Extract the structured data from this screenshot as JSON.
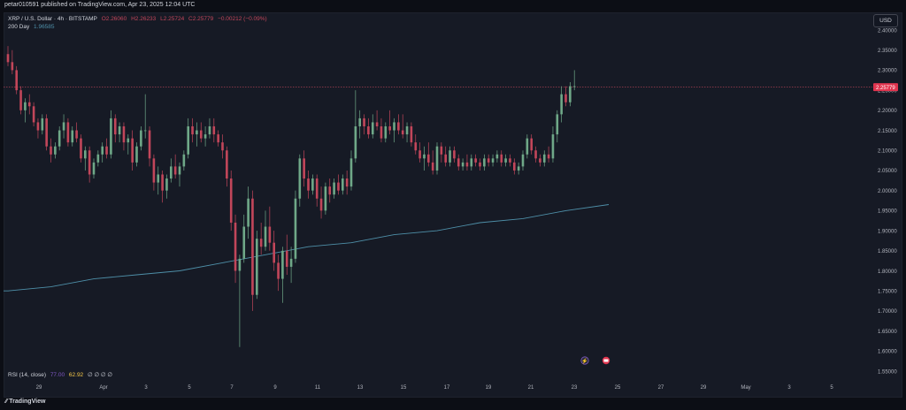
{
  "publish_line": "petar010591 published on TradingView.com, Apr 23, 2025 12:04 UTC",
  "legend": {
    "symbol": "XRP / U.S. Dollar · 4h · BITSTAMP",
    "open": "O2.26060",
    "high": "H2.26233",
    "low": "L2.25724",
    "close": "C2.25779",
    "change": "−0.00212 (−0.09%)",
    "ma_label": "200 Day",
    "ma_value": "1.96585",
    "rsi_label": "RSI (14, close)",
    "rsi_value1": "77.00",
    "rsi_value2": "62.92",
    "rsi_extra": "∅ ∅ ∅ ∅"
  },
  "currency_button": "USD",
  "brand": "TradingView",
  "colors": {
    "up": "#6fa888",
    "down": "#c2465a",
    "ma": "#4e8fa8",
    "price_line": "#c2465a",
    "price_label_bg": "#e0354f"
  },
  "chart_data": {
    "type": "candlestick",
    "y_ticks": [
      "2.40000",
      "2.35000",
      "2.30000",
      "2.25000",
      "2.20000",
      "2.15000",
      "2.10000",
      "2.05000",
      "2.00000",
      "1.95000",
      "1.90000",
      "1.85000",
      "1.80000",
      "1.75000",
      "1.70000",
      "1.65000",
      "1.60000",
      "1.55000"
    ],
    "x_ticks": [
      "29",
      "Apr",
      "3",
      "5",
      "7",
      "9",
      "11",
      "13",
      "15",
      "17",
      "19",
      "21",
      "23",
      "25",
      "27",
      "29",
      "May",
      "3",
      "5"
    ],
    "ylim": [
      1.54,
      2.42
    ],
    "last_price": "2.25779",
    "bars_per_day": 6,
    "first_date": "Mar 28",
    "ohlc": [
      [
        2.34,
        2.36,
        2.31,
        2.32
      ],
      [
        2.32,
        2.35,
        2.29,
        2.3
      ],
      [
        2.3,
        2.31,
        2.24,
        2.25
      ],
      [
        2.25,
        2.26,
        2.19,
        2.2
      ],
      [
        2.2,
        2.23,
        2.17,
        2.22
      ],
      [
        2.22,
        2.24,
        2.19,
        2.21
      ],
      [
        2.21,
        2.22,
        2.16,
        2.17
      ],
      [
        2.17,
        2.18,
        2.13,
        2.15
      ],
      [
        2.15,
        2.19,
        2.14,
        2.18
      ],
      [
        2.18,
        2.19,
        2.1,
        2.11
      ],
      [
        2.11,
        2.13,
        2.07,
        2.09
      ],
      [
        2.09,
        2.12,
        2.08,
        2.11
      ],
      [
        2.11,
        2.16,
        2.1,
        2.15
      ],
      [
        2.15,
        2.19,
        2.13,
        2.17
      ],
      [
        2.17,
        2.18,
        2.11,
        2.12
      ],
      [
        2.12,
        2.16,
        2.11,
        2.15
      ],
      [
        2.15,
        2.17,
        2.12,
        2.13
      ],
      [
        2.13,
        2.14,
        2.07,
        2.08
      ],
      [
        2.08,
        2.11,
        2.05,
        2.1
      ],
      [
        2.1,
        2.11,
        2.02,
        2.04
      ],
      [
        2.04,
        2.08,
        2.03,
        2.07
      ],
      [
        2.07,
        2.1,
        2.06,
        2.09
      ],
      [
        2.09,
        2.12,
        2.07,
        2.11
      ],
      [
        2.11,
        2.13,
        2.08,
        2.09
      ],
      [
        2.09,
        2.2,
        2.08,
        2.18
      ],
      [
        2.18,
        2.19,
        2.12,
        2.14
      ],
      [
        2.14,
        2.17,
        2.12,
        2.16
      ],
      [
        2.16,
        2.17,
        2.1,
        2.12
      ],
      [
        2.12,
        2.14,
        2.09,
        2.13
      ],
      [
        2.13,
        2.15,
        2.05,
        2.07
      ],
      [
        2.07,
        2.12,
        2.06,
        2.11
      ],
      [
        2.11,
        2.16,
        2.1,
        2.15
      ],
      [
        2.15,
        2.24,
        2.13,
        2.15
      ],
      [
        2.15,
        2.16,
        2.06,
        2.08
      ],
      [
        2.08,
        2.09,
        2.0,
        2.02
      ],
      [
        2.02,
        2.06,
        1.99,
        2.04
      ],
      [
        2.04,
        2.05,
        1.97,
        2.0
      ],
      [
        2.0,
        2.04,
        1.98,
        2.03
      ],
      [
        2.03,
        2.08,
        2.02,
        2.06
      ],
      [
        2.06,
        2.09,
        2.03,
        2.04
      ],
      [
        2.04,
        2.07,
        2.01,
        2.06
      ],
      [
        2.06,
        2.1,
        2.05,
        2.09
      ],
      [
        2.09,
        2.18,
        2.08,
        2.16
      ],
      [
        2.16,
        2.18,
        2.12,
        2.14
      ],
      [
        2.14,
        2.17,
        2.11,
        2.15
      ],
      [
        2.15,
        2.17,
        2.12,
        2.13
      ],
      [
        2.13,
        2.16,
        2.11,
        2.14
      ],
      [
        2.14,
        2.18,
        2.13,
        2.16
      ],
      [
        2.16,
        2.18,
        2.12,
        2.14
      ],
      [
        2.14,
        2.15,
        2.11,
        2.12
      ],
      [
        2.12,
        2.14,
        2.08,
        2.1
      ],
      [
        2.1,
        2.11,
        2.01,
        2.03
      ],
      [
        2.03,
        2.05,
        1.9,
        1.92
      ],
      [
        1.92,
        1.94,
        1.77,
        1.8
      ],
      [
        1.8,
        1.84,
        1.61,
        1.83
      ],
      [
        1.83,
        1.94,
        1.82,
        1.91
      ],
      [
        1.91,
        2.01,
        1.88,
        1.98
      ],
      [
        1.98,
        2.0,
        1.7,
        1.74
      ],
      [
        1.74,
        1.9,
        1.73,
        1.88
      ],
      [
        1.88,
        1.92,
        1.84,
        1.86
      ],
      [
        1.86,
        1.95,
        1.85,
        1.91
      ],
      [
        1.91,
        1.96,
        1.85,
        1.87
      ],
      [
        1.87,
        1.9,
        1.8,
        1.82
      ],
      [
        1.82,
        1.84,
        1.75,
        1.78
      ],
      [
        1.78,
        1.86,
        1.72,
        1.85
      ],
      [
        1.85,
        1.89,
        1.79,
        1.81
      ],
      [
        1.81,
        1.86,
        1.77,
        1.83
      ],
      [
        1.83,
        2.0,
        1.82,
        1.98
      ],
      [
        1.98,
        2.09,
        1.96,
        2.08
      ],
      [
        2.08,
        2.1,
        2.01,
        2.03
      ],
      [
        2.03,
        2.05,
        1.98,
        2.0
      ],
      [
        2.0,
        2.04,
        1.99,
        2.03
      ],
      [
        2.03,
        2.04,
        1.96,
        1.98
      ],
      [
        1.98,
        2.01,
        1.93,
        1.95
      ],
      [
        1.95,
        2.02,
        1.94,
        2.01
      ],
      [
        2.01,
        2.03,
        1.97,
        1.99
      ],
      [
        1.99,
        2.03,
        1.98,
        2.02
      ],
      [
        2.02,
        2.04,
        1.99,
        2.0
      ],
      [
        2.0,
        2.04,
        1.99,
        2.03
      ],
      [
        2.03,
        2.05,
        1.99,
        2.01
      ],
      [
        2.01,
        2.1,
        2.0,
        2.08
      ],
      [
        2.08,
        2.25,
        2.07,
        2.16
      ],
      [
        2.16,
        2.2,
        2.13,
        2.18
      ],
      [
        2.18,
        2.19,
        2.14,
        2.16
      ],
      [
        2.16,
        2.18,
        2.13,
        2.14
      ],
      [
        2.14,
        2.19,
        2.13,
        2.17
      ],
      [
        2.17,
        2.2,
        2.15,
        2.16
      ],
      [
        2.16,
        2.18,
        2.12,
        2.13
      ],
      [
        2.13,
        2.17,
        2.12,
        2.16
      ],
      [
        2.16,
        2.2,
        2.14,
        2.15
      ],
      [
        2.15,
        2.18,
        2.12,
        2.17
      ],
      [
        2.17,
        2.19,
        2.14,
        2.15
      ],
      [
        2.15,
        2.19,
        2.13,
        2.14
      ],
      [
        2.14,
        2.17,
        2.12,
        2.16
      ],
      [
        2.16,
        2.17,
        2.11,
        2.12
      ],
      [
        2.12,
        2.14,
        2.09,
        2.1
      ],
      [
        2.1,
        2.12,
        2.07,
        2.08
      ],
      [
        2.08,
        2.11,
        2.05,
        2.09
      ],
      [
        2.09,
        2.12,
        2.06,
        2.07
      ],
      [
        2.07,
        2.1,
        2.04,
        2.05
      ],
      [
        2.05,
        2.12,
        2.04,
        2.11
      ],
      [
        2.11,
        2.12,
        2.07,
        2.09
      ],
      [
        2.09,
        2.11,
        2.06,
        2.07
      ],
      [
        2.07,
        2.11,
        2.06,
        2.1
      ],
      [
        2.1,
        2.11,
        2.07,
        2.08
      ],
      [
        2.08,
        2.09,
        2.05,
        2.06
      ],
      [
        2.06,
        2.08,
        2.05,
        2.07
      ],
      [
        2.07,
        2.09,
        2.05,
        2.06
      ],
      [
        2.06,
        2.09,
        2.05,
        2.08
      ],
      [
        2.08,
        2.09,
        2.06,
        2.07
      ],
      [
        2.07,
        2.08,
        2.05,
        2.06
      ],
      [
        2.06,
        2.09,
        2.05,
        2.08
      ],
      [
        2.08,
        2.09,
        2.06,
        2.07
      ],
      [
        2.07,
        2.09,
        2.06,
        2.08
      ],
      [
        2.08,
        2.1,
        2.07,
        2.09
      ],
      [
        2.09,
        2.1,
        2.06,
        2.07
      ],
      [
        2.07,
        2.09,
        2.06,
        2.08
      ],
      [
        2.08,
        2.09,
        2.06,
        2.07
      ],
      [
        2.07,
        2.08,
        2.04,
        2.05
      ],
      [
        2.05,
        2.07,
        2.04,
        2.06
      ],
      [
        2.06,
        2.1,
        2.05,
        2.09
      ],
      [
        2.09,
        2.14,
        2.08,
        2.13
      ],
      [
        2.13,
        2.14,
        2.09,
        2.1
      ],
      [
        2.1,
        2.11,
        2.07,
        2.08
      ],
      [
        2.08,
        2.09,
        2.06,
        2.07
      ],
      [
        2.07,
        2.1,
        2.06,
        2.09
      ],
      [
        2.09,
        2.11,
        2.07,
        2.08
      ],
      [
        2.08,
        2.16,
        2.07,
        2.14
      ],
      [
        2.14,
        2.2,
        2.12,
        2.19
      ],
      [
        2.19,
        2.26,
        2.17,
        2.24
      ],
      [
        2.24,
        2.26,
        2.21,
        2.22
      ],
      [
        2.22,
        2.27,
        2.21,
        2.26
      ],
      [
        2.26,
        2.3,
        2.25,
        2.26
      ]
    ],
    "ma200": [
      [
        0,
        1.75
      ],
      [
        10,
        1.76
      ],
      [
        20,
        1.78
      ],
      [
        30,
        1.79
      ],
      [
        40,
        1.8
      ],
      [
        50,
        1.82
      ],
      [
        60,
        1.84
      ],
      [
        70,
        1.86
      ],
      [
        80,
        1.87
      ],
      [
        90,
        1.89
      ],
      [
        100,
        1.9
      ],
      [
        110,
        1.92
      ],
      [
        120,
        1.93
      ],
      [
        130,
        1.95
      ],
      [
        140,
        1.965
      ]
    ]
  }
}
